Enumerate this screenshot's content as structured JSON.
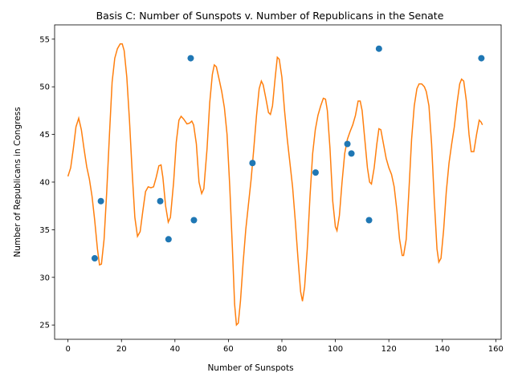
{
  "chart_data": {
    "type": "scatter",
    "title": "Basis C: Number of Sunspots v. Number of Republicans in the Senate",
    "xlabel": "Number of Sunspots",
    "ylabel": "Number of Republicans in Congress",
    "xlim": [
      -5,
      162
    ],
    "ylim": [
      23.5,
      56.5
    ],
    "xticks": [
      0,
      20,
      40,
      60,
      80,
      100,
      120,
      140,
      160
    ],
    "yticks": [
      25,
      30,
      35,
      40,
      45,
      50,
      55
    ],
    "grid": false,
    "legend": "none",
    "colors": {
      "points": "#1f77b4",
      "line": "#ff7f0e"
    },
    "points": [
      {
        "x": 10,
        "y": 32
      },
      {
        "x": 12.3,
        "y": 38
      },
      {
        "x": 34.5,
        "y": 38
      },
      {
        "x": 37.6,
        "y": 34
      },
      {
        "x": 45.9,
        "y": 53
      },
      {
        "x": 47.1,
        "y": 36
      },
      {
        "x": 69,
        "y": 42
      },
      {
        "x": 92.6,
        "y": 41
      },
      {
        "x": 104.5,
        "y": 44
      },
      {
        "x": 106,
        "y": 43
      },
      {
        "x": 112.6,
        "y": 36
      },
      {
        "x": 116.3,
        "y": 54
      },
      {
        "x": 154.6,
        "y": 53
      }
    ],
    "curve": [
      [
        0,
        40.6
      ],
      [
        1,
        41.5
      ],
      [
        2,
        43.5
      ],
      [
        3,
        45.8
      ],
      [
        4,
        46.7
      ],
      [
        5,
        45.5
      ],
      [
        6,
        43.5
      ],
      [
        7,
        41.6
      ],
      [
        8,
        40.3
      ],
      [
        9,
        38.5
      ],
      [
        10,
        36
      ],
      [
        11,
        33
      ],
      [
        11.8,
        31.3
      ],
      [
        12.5,
        31.4
      ],
      [
        13.5,
        34
      ],
      [
        14.5,
        39
      ],
      [
        15.5,
        45
      ],
      [
        16.5,
        50.5
      ],
      [
        17.5,
        53
      ],
      [
        18.5,
        54
      ],
      [
        19.5,
        54.5
      ],
      [
        20.3,
        54.5
      ],
      [
        21,
        53.8
      ],
      [
        22,
        51
      ],
      [
        23,
        46.5
      ],
      [
        24,
        41
      ],
      [
        25,
        36.3
      ],
      [
        26,
        34.3
      ],
      [
        27,
        34.8
      ],
      [
        28,
        37
      ],
      [
        29,
        39
      ],
      [
        30,
        39.5
      ],
      [
        31,
        39.4
      ],
      [
        32,
        39.5
      ],
      [
        33,
        40.5
      ],
      [
        34,
        41.7
      ],
      [
        34.8,
        41.8
      ],
      [
        35.5,
        40.5
      ],
      [
        36.5,
        37.5
      ],
      [
        37.5,
        35.8
      ],
      [
        38.3,
        36.3
      ],
      [
        39.5,
        40
      ],
      [
        40.5,
        44.2
      ],
      [
        41.5,
        46.5
      ],
      [
        42.3,
        46.9
      ],
      [
        43.3,
        46.6
      ],
      [
        44.5,
        46.1
      ],
      [
        45.5,
        46.2
      ],
      [
        46.3,
        46.4
      ],
      [
        47,
        46
      ],
      [
        48,
        44
      ],
      [
        49,
        40
      ],
      [
        50,
        38.8
      ],
      [
        50.8,
        39.3
      ],
      [
        52,
        43.5
      ],
      [
        53,
        48.3
      ],
      [
        54,
        51.3
      ],
      [
        54.7,
        52.3
      ],
      [
        55.5,
        52.1
      ],
      [
        56.5,
        50.8
      ],
      [
        57.5,
        49.5
      ],
      [
        58.5,
        47.8
      ],
      [
        59.5,
        45
      ],
      [
        60.5,
        39.5
      ],
      [
        61.5,
        33
      ],
      [
        62.3,
        27.2
      ],
      [
        63,
        25
      ],
      [
        63.7,
        25.2
      ],
      [
        64.5,
        27.5
      ],
      [
        65.5,
        31.5
      ],
      [
        66.5,
        35
      ],
      [
        67.5,
        37.7
      ],
      [
        68.5,
        40.3
      ],
      [
        69.5,
        43.5
      ],
      [
        70.5,
        47
      ],
      [
        71.5,
        49.8
      ],
      [
        72.3,
        50.6
      ],
      [
        73,
        50.2
      ],
      [
        74,
        48.8
      ],
      [
        75,
        47.3
      ],
      [
        75.7,
        47.1
      ],
      [
        76.5,
        48
      ],
      [
        77.5,
        51
      ],
      [
        78.3,
        53.1
      ],
      [
        79,
        52.9
      ],
      [
        80,
        51
      ],
      [
        81,
        47.5
      ],
      [
        82,
        44.5
      ],
      [
        83,
        42
      ],
      [
        84,
        39.5
      ],
      [
        85,
        36
      ],
      [
        86,
        32
      ],
      [
        87,
        28.5
      ],
      [
        87.7,
        27.5
      ],
      [
        88.5,
        29
      ],
      [
        89.5,
        33
      ],
      [
        90.5,
        38.5
      ],
      [
        91.5,
        43
      ],
      [
        92.5,
        45.5
      ],
      [
        93.5,
        47
      ],
      [
        94.5,
        48
      ],
      [
        95.5,
        48.8
      ],
      [
        96.3,
        48.7
      ],
      [
        97,
        47.5
      ],
      [
        98,
        43.5
      ],
      [
        99,
        38
      ],
      [
        100,
        35.3
      ],
      [
        100.6,
        34.9
      ],
      [
        101.5,
        36.5
      ],
      [
        102.5,
        40
      ],
      [
        103.5,
        43
      ],
      [
        104.5,
        44.5
      ],
      [
        105.5,
        45.3
      ],
      [
        106.5,
        46
      ],
      [
        107.5,
        47
      ],
      [
        108.5,
        48.5
      ],
      [
        109.3,
        48.5
      ],
      [
        110,
        47.5
      ],
      [
        111,
        44.5
      ],
      [
        112,
        41.5
      ],
      [
        112.8,
        40
      ],
      [
        113.5,
        39.8
      ],
      [
        114.5,
        41.5
      ],
      [
        115.5,
        44
      ],
      [
        116.3,
        45.6
      ],
      [
        117,
        45.5
      ],
      [
        118,
        44
      ],
      [
        119,
        42.5
      ],
      [
        120,
        41.5
      ],
      [
        121,
        40.8
      ],
      [
        122,
        39.5
      ],
      [
        123,
        37
      ],
      [
        124,
        34
      ],
      [
        125,
        32.3
      ],
      [
        125.5,
        32.3
      ],
      [
        126.5,
        34
      ],
      [
        127.5,
        39
      ],
      [
        128.5,
        44.5
      ],
      [
        129.5,
        48
      ],
      [
        130.5,
        49.8
      ],
      [
        131.3,
        50.3
      ],
      [
        132.3,
        50.3
      ],
      [
        133.3,
        50
      ],
      [
        134,
        49.5
      ],
      [
        135,
        48
      ],
      [
        136,
        44
      ],
      [
        137,
        38
      ],
      [
        138,
        33
      ],
      [
        138.7,
        31.6
      ],
      [
        139.5,
        32
      ],
      [
        140.5,
        35
      ],
      [
        141.5,
        39
      ],
      [
        142.5,
        42
      ],
      [
        143.5,
        44
      ],
      [
        144.5,
        45.8
      ],
      [
        145.5,
        48.3
      ],
      [
        146.5,
        50.3
      ],
      [
        147.2,
        50.8
      ],
      [
        148,
        50.6
      ],
      [
        149,
        48.5
      ],
      [
        150,
        45
      ],
      [
        150.8,
        43.2
      ],
      [
        151.8,
        43.2
      ],
      [
        152.8,
        45
      ],
      [
        153.8,
        46.5
      ],
      [
        154.5,
        46.3
      ],
      [
        155,
        46
      ]
    ]
  }
}
